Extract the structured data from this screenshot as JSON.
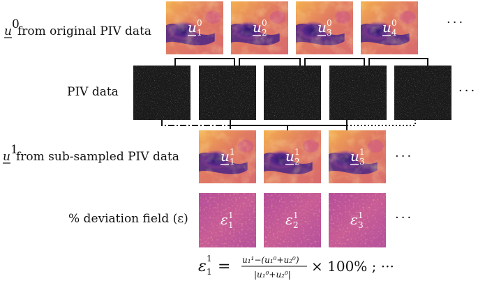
{
  "rows": {
    "original": {
      "label_var": "u",
      "label_sup": "0",
      "label_text": " from original PIV data",
      "tiles": [
        {
          "var": "u",
          "sub": "1",
          "sup": "0"
        },
        {
          "var": "u",
          "sub": "2",
          "sup": "0"
        },
        {
          "var": "u",
          "sub": "3",
          "sup": "0"
        },
        {
          "var": "u",
          "sub": "4",
          "sup": "0"
        }
      ],
      "ellipsis": "···"
    },
    "piv": {
      "label": "PIV data",
      "count": 5,
      "ellipsis": "···"
    },
    "subsampled": {
      "label_var": "u",
      "label_sup": "1",
      "label_text": " from sub-sampled PIV data",
      "tiles": [
        {
          "var": "u",
          "sub": "1",
          "sup": "1"
        },
        {
          "var": "u",
          "sub": "2",
          "sup": "1"
        },
        {
          "var": "u",
          "sub": "3",
          "sup": "1"
        }
      ],
      "ellipsis": "···"
    },
    "deviation": {
      "label": "% deviation field (ε)",
      "tiles": [
        {
          "var": "ε",
          "sub": "1",
          "sup": "1"
        },
        {
          "var": "ε",
          "sub": "2",
          "sup": "1"
        },
        {
          "var": "ε",
          "sub": "3",
          "sup": "1"
        }
      ],
      "ellipsis": "···"
    }
  },
  "formula": {
    "lhs_var": "ε",
    "lhs_sub": "1",
    "lhs_sup": "1",
    "equals": "=",
    "numerator": "u₁¹−(u₁⁰+u₂⁰)",
    "denominator": "|u₁⁰+u₂⁰|",
    "times": "× 100% ; ···"
  },
  "colors": {
    "field_orange": "#f2a24a",
    "field_magenta": "#c8488f",
    "field_purple": "#3b1a7a",
    "deviation_base": "#c25a9c",
    "piv_dark": "#1a1a1a"
  }
}
